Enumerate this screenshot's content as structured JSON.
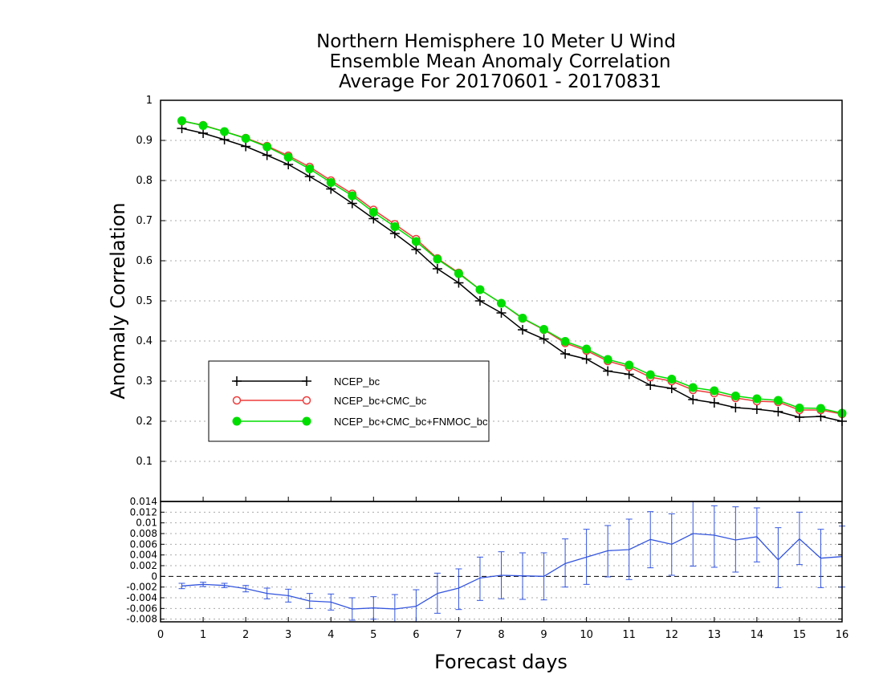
{
  "chart_data": [
    {
      "type": "line",
      "title": [
        "Northern Hemisphere 10 Meter U Wind",
        "Ensemble Mean Anomaly Correlation",
        "Average For 20170601 - 20170831"
      ],
      "ylabel": "Anomaly Correlation",
      "ylim": [
        0,
        1
      ],
      "yticks": [
        0.1,
        0.2,
        0.3,
        0.4,
        0.5,
        0.6,
        0.7,
        0.8,
        0.9,
        1
      ],
      "grid": true,
      "legend_position": "lower-left",
      "x": [
        0.5,
        1,
        1.5,
        2,
        2.5,
        3,
        3.5,
        4,
        4.5,
        5,
        5.5,
        6,
        6.5,
        7,
        7.5,
        8,
        8.5,
        9,
        9.5,
        10,
        10.5,
        11,
        11.5,
        12,
        12.5,
        13,
        13.5,
        14,
        14.5,
        15,
        15.5,
        16
      ],
      "series": [
        {
          "name": "NCEP_bc",
          "color": "#000000",
          "marker": "plus",
          "values": [
            0.93,
            0.918,
            0.902,
            0.885,
            0.863,
            0.84,
            0.81,
            0.779,
            0.743,
            0.705,
            0.668,
            0.628,
            0.58,
            0.545,
            0.5,
            0.47,
            0.428,
            0.405,
            0.368,
            0.355,
            0.325,
            0.317,
            0.29,
            0.282,
            0.254,
            0.246,
            0.234,
            0.23,
            0.224,
            0.21,
            0.212,
            0.2
          ]
        },
        {
          "name": "NCEP_bc+CMC_bc",
          "color": "#ee3b3b",
          "marker": "open-circle",
          "values": [
            0.948,
            0.938,
            0.922,
            0.906,
            0.886,
            0.862,
            0.834,
            0.8,
            0.767,
            0.727,
            0.691,
            0.654,
            0.606,
            0.57,
            0.528,
            0.494,
            0.456,
            0.428,
            0.395,
            0.376,
            0.35,
            0.335,
            0.31,
            0.3,
            0.278,
            0.27,
            0.258,
            0.25,
            0.248,
            0.228,
            0.228,
            0.218
          ]
        },
        {
          "name": "NCEP_bc+CMC_bc+FNMOC_bc",
          "color": "#00dd00",
          "marker": "filled-circle",
          "values": [
            0.949,
            0.937,
            0.922,
            0.905,
            0.884,
            0.858,
            0.829,
            0.795,
            0.762,
            0.721,
            0.685,
            0.648,
            0.604,
            0.568,
            0.528,
            0.494,
            0.457,
            0.429,
            0.399,
            0.38,
            0.354,
            0.34,
            0.316,
            0.305,
            0.284,
            0.276,
            0.263,
            0.256,
            0.252,
            0.233,
            0.232,
            0.22
          ]
        }
      ]
    },
    {
      "type": "line",
      "xlabel": "Forecast days",
      "xlim": [
        0,
        16
      ],
      "xticks": [
        0,
        1,
        2,
        3,
        4,
        5,
        6,
        7,
        8,
        9,
        10,
        11,
        12,
        13,
        14,
        15,
        16
      ],
      "ylim": [
        -0.0085,
        0.014
      ],
      "yticks": [
        -0.008,
        -0.006,
        -0.004,
        -0.002,
        0,
        0.002,
        0.004,
        0.006,
        0.008,
        0.01,
        0.012,
        0.014
      ],
      "ytick_labels": [
        "-0.008",
        "-0.006",
        "-0.004",
        "-0.002",
        "0",
        "0.002",
        "0.004",
        "0.006",
        "0.008",
        "0.01",
        "0.012",
        "0.014"
      ],
      "grid": true,
      "color": "#3355dd",
      "x": [
        0.5,
        1,
        1.5,
        2,
        2.5,
        3,
        3.5,
        4,
        4.5,
        5,
        5.5,
        6,
        6.5,
        7,
        7.5,
        8,
        8.5,
        9,
        9.5,
        10,
        10.5,
        11,
        11.5,
        12,
        12.5,
        13,
        13.5,
        14,
        14.5,
        15,
        15.5,
        16
      ],
      "values": [
        -0.0018,
        -0.0015,
        -0.0017,
        -0.0023,
        -0.0032,
        -0.0036,
        -0.0046,
        -0.0048,
        -0.0061,
        -0.0059,
        -0.0061,
        -0.0056,
        -0.0032,
        -0.0022,
        -0.0003,
        0.0002,
        0.0001,
        0.0,
        0.0024,
        0.0036,
        0.0048,
        0.005,
        0.0069,
        0.006,
        0.008,
        0.0077,
        0.0068,
        0.0074,
        0.0031,
        0.007,
        0.0034,
        0.0037
      ],
      "error_low": [
        -0.0023,
        -0.0019,
        -0.0021,
        -0.0029,
        -0.0042,
        -0.0048,
        -0.006,
        -0.0063,
        -0.0082,
        -0.008,
        -0.0088,
        -0.0087,
        -0.0069,
        -0.0062,
        -0.0045,
        -0.0042,
        -0.0043,
        -0.0044,
        -0.002,
        -0.0015,
        -0.0001,
        -0.0006,
        0.0016,
        0.0002,
        0.0019,
        0.0017,
        0.0008,
        0.0027,
        -0.0021,
        0.0022,
        -0.0021,
        -0.002
      ],
      "error_high": [
        -0.0013,
        -0.0011,
        -0.0013,
        -0.0017,
        -0.0022,
        -0.0024,
        -0.0032,
        -0.0033,
        -0.004,
        -0.0038,
        -0.0034,
        -0.0025,
        0.0006,
        0.0014,
        0.0036,
        0.0046,
        0.0044,
        0.0044,
        0.007,
        0.0088,
        0.0095,
        0.0107,
        0.0121,
        0.0117,
        0.0144,
        0.0132,
        0.013,
        0.0128,
        0.0091,
        0.012,
        0.0088,
        0.0094
      ]
    }
  ]
}
